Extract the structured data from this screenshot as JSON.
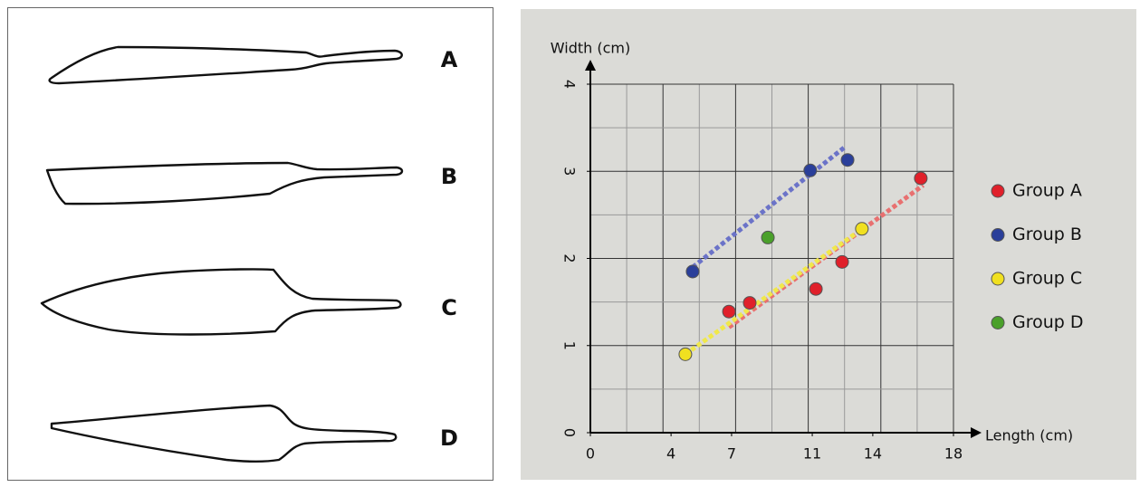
{
  "blades": {
    "labels": [
      "A",
      "B",
      "C",
      "D"
    ]
  },
  "chart_data": {
    "type": "scatter",
    "x_label": "Length (cm)",
    "y_label": "Width (cm)",
    "xlim": [
      0,
      18
    ],
    "xticks": [
      0,
      4,
      7,
      11,
      14,
      18
    ],
    "ylim": [
      0,
      4
    ],
    "yticks": [
      0,
      1,
      2,
      3,
      4
    ],
    "grid": true,
    "legend": "right",
    "series": [
      {
        "name": "Group A",
        "color": "#e0202a",
        "trend_color": "#e87070",
        "x": [
          6.87,
          7.9,
          11.18,
          12.48,
          16.38
        ],
        "values": [
          1.39,
          1.49,
          1.65,
          1.96,
          2.92
        ],
        "trend": {
          "x": [
            6.87,
            16.5
          ],
          "values": [
            1.21,
            2.84
          ]
        }
      },
      {
        "name": "Group B",
        "color": "#2a3f9a",
        "trend_color": "#6b73c8",
        "x": [
          5.07,
          10.9,
          12.75
        ],
        "values": [
          1.85,
          3.01,
          3.13
        ],
        "trend": {
          "x": [
            5.07,
            12.57
          ],
          "values": [
            1.9,
            3.27
          ]
        }
      },
      {
        "name": "Group C",
        "color": "#f0e020",
        "trend_color": "#f0e84a",
        "x": [
          4.71,
          13.46
        ],
        "values": [
          0.9,
          2.34
        ],
        "trend": {
          "x": [
            4.71,
            13.6
          ],
          "values": [
            0.9,
            2.36
          ]
        }
      },
      {
        "name": "Group D",
        "color": "#4aa02a",
        "x": [
          8.8
        ],
        "values": [
          2.24
        ]
      }
    ]
  }
}
